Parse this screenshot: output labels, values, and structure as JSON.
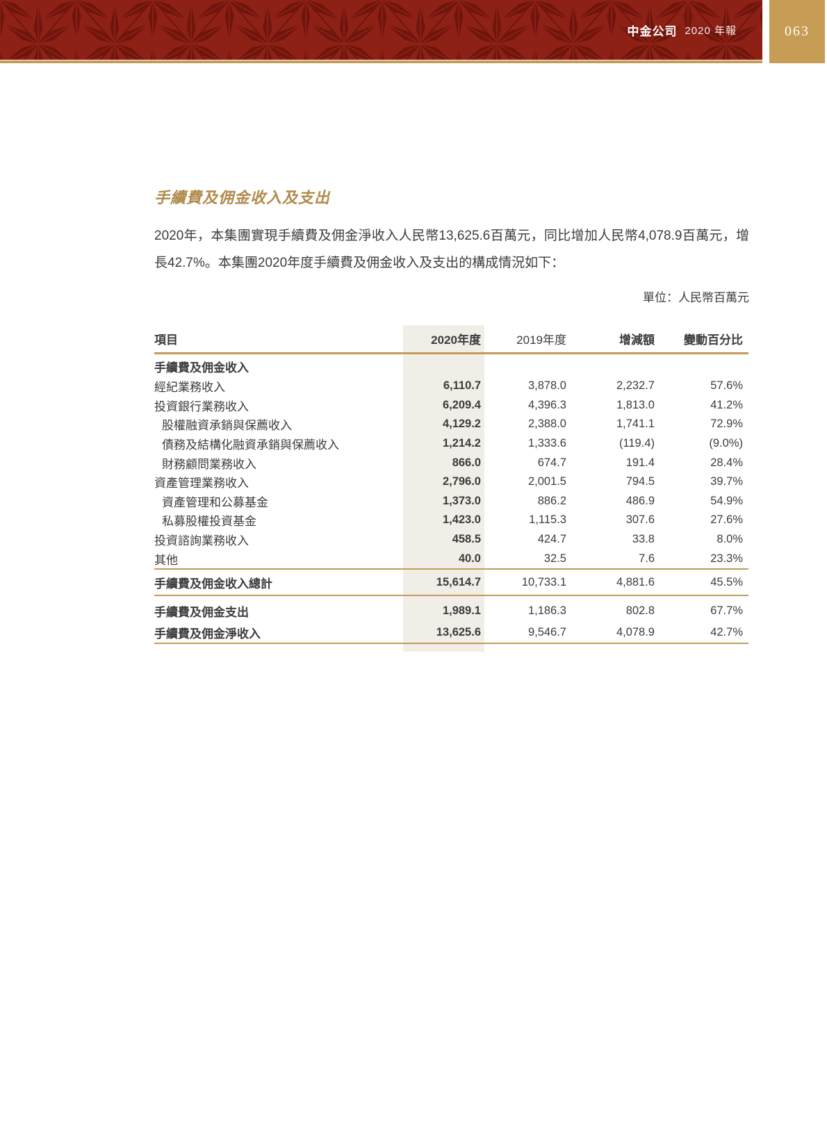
{
  "colors": {
    "banner_red": "#8E2116",
    "banner_red_dark": "#6F150C",
    "gold": "#C39A58",
    "gold_box": "#C79C55",
    "title_gold": "#B28A4C",
    "text": "#3C3C3C",
    "highlight": "#F1EEE8"
  },
  "header": {
    "brand": "中金公司",
    "edition": "2020 年報",
    "page_number": "063"
  },
  "section": {
    "title": "手續費及佣金收入及支出",
    "intro": "2020年，本集團實現手續費及佣金淨收入人民幣13,625.6百萬元，同比增加人民幣4,078.9百萬元，增長42.7%。本集團2020年度手續費及佣金收入及支出的構成情況如下：",
    "unit_note": "單位：人民幣百萬元"
  },
  "table": {
    "columns": [
      "項目",
      "2020年度",
      "2019年度",
      "增減額",
      "變動百分比"
    ],
    "rows": [
      {
        "cls": "section",
        "bold": true,
        "indent": false,
        "label": "手續費及佣金收入",
        "values": [
          "",
          "",
          "",
          ""
        ]
      },
      {
        "cls": "",
        "bold": false,
        "indent": false,
        "label": "經紀業務收入",
        "values": [
          "6,110.7",
          "3,878.0",
          "2,232.7",
          "57.6%"
        ]
      },
      {
        "cls": "",
        "bold": false,
        "indent": false,
        "label": "投資銀行業務收入",
        "values": [
          "6,209.4",
          "4,396.3",
          "1,813.0",
          "41.2%"
        ]
      },
      {
        "cls": "sub",
        "bold": false,
        "indent": true,
        "label": "股權融資承銷與保薦收入",
        "values": [
          "4,129.2",
          "2,388.0",
          "1,741.1",
          "72.9%"
        ]
      },
      {
        "cls": "sub",
        "bold": false,
        "indent": true,
        "label": "債務及結構化融資承銷與保薦收入",
        "values": [
          "1,214.2",
          "1,333.6",
          "(119.4)",
          "(9.0%)"
        ]
      },
      {
        "cls": "sub",
        "bold": false,
        "indent": true,
        "label": "財務顧問業務收入",
        "values": [
          "866.0",
          "674.7",
          "191.4",
          "28.4%"
        ]
      },
      {
        "cls": "",
        "bold": false,
        "indent": false,
        "label": "資產管理業務收入",
        "values": [
          "2,796.0",
          "2,001.5",
          "794.5",
          "39.7%"
        ]
      },
      {
        "cls": "sub",
        "bold": false,
        "indent": true,
        "label": "資產管理和公募基金",
        "values": [
          "1,373.0",
          "886.2",
          "486.9",
          "54.9%"
        ]
      },
      {
        "cls": "sub",
        "bold": false,
        "indent": true,
        "label": "私募股權投資基金",
        "values": [
          "1,423.0",
          "1,115.3",
          "307.6",
          "27.6%"
        ]
      },
      {
        "cls": "",
        "bold": false,
        "indent": false,
        "label": "投資諮詢業務收入",
        "values": [
          "458.5",
          "424.7",
          "33.8",
          "8.0%"
        ]
      },
      {
        "cls": "",
        "bold": false,
        "indent": false,
        "label": "其他",
        "values": [
          "40.0",
          "32.5",
          "7.6",
          "23.3%"
        ]
      },
      {
        "cls": "total",
        "bold": true,
        "indent": false,
        "label": "手續費及佣金收入總計",
        "values": [
          "15,614.7",
          "10,733.1",
          "4,881.6",
          "45.5%"
        ]
      },
      {
        "cls": "expense",
        "bold": true,
        "indent": false,
        "label": "手續費及佣金支出",
        "values": [
          "1,989.1",
          "1,186.3",
          "802.8",
          "67.7%"
        ]
      },
      {
        "cls": "net",
        "bold": true,
        "indent": false,
        "label": "手續費及佣金淨收入",
        "values": [
          "13,625.6",
          "9,546.7",
          "4,078.9",
          "42.7%"
        ]
      }
    ]
  }
}
